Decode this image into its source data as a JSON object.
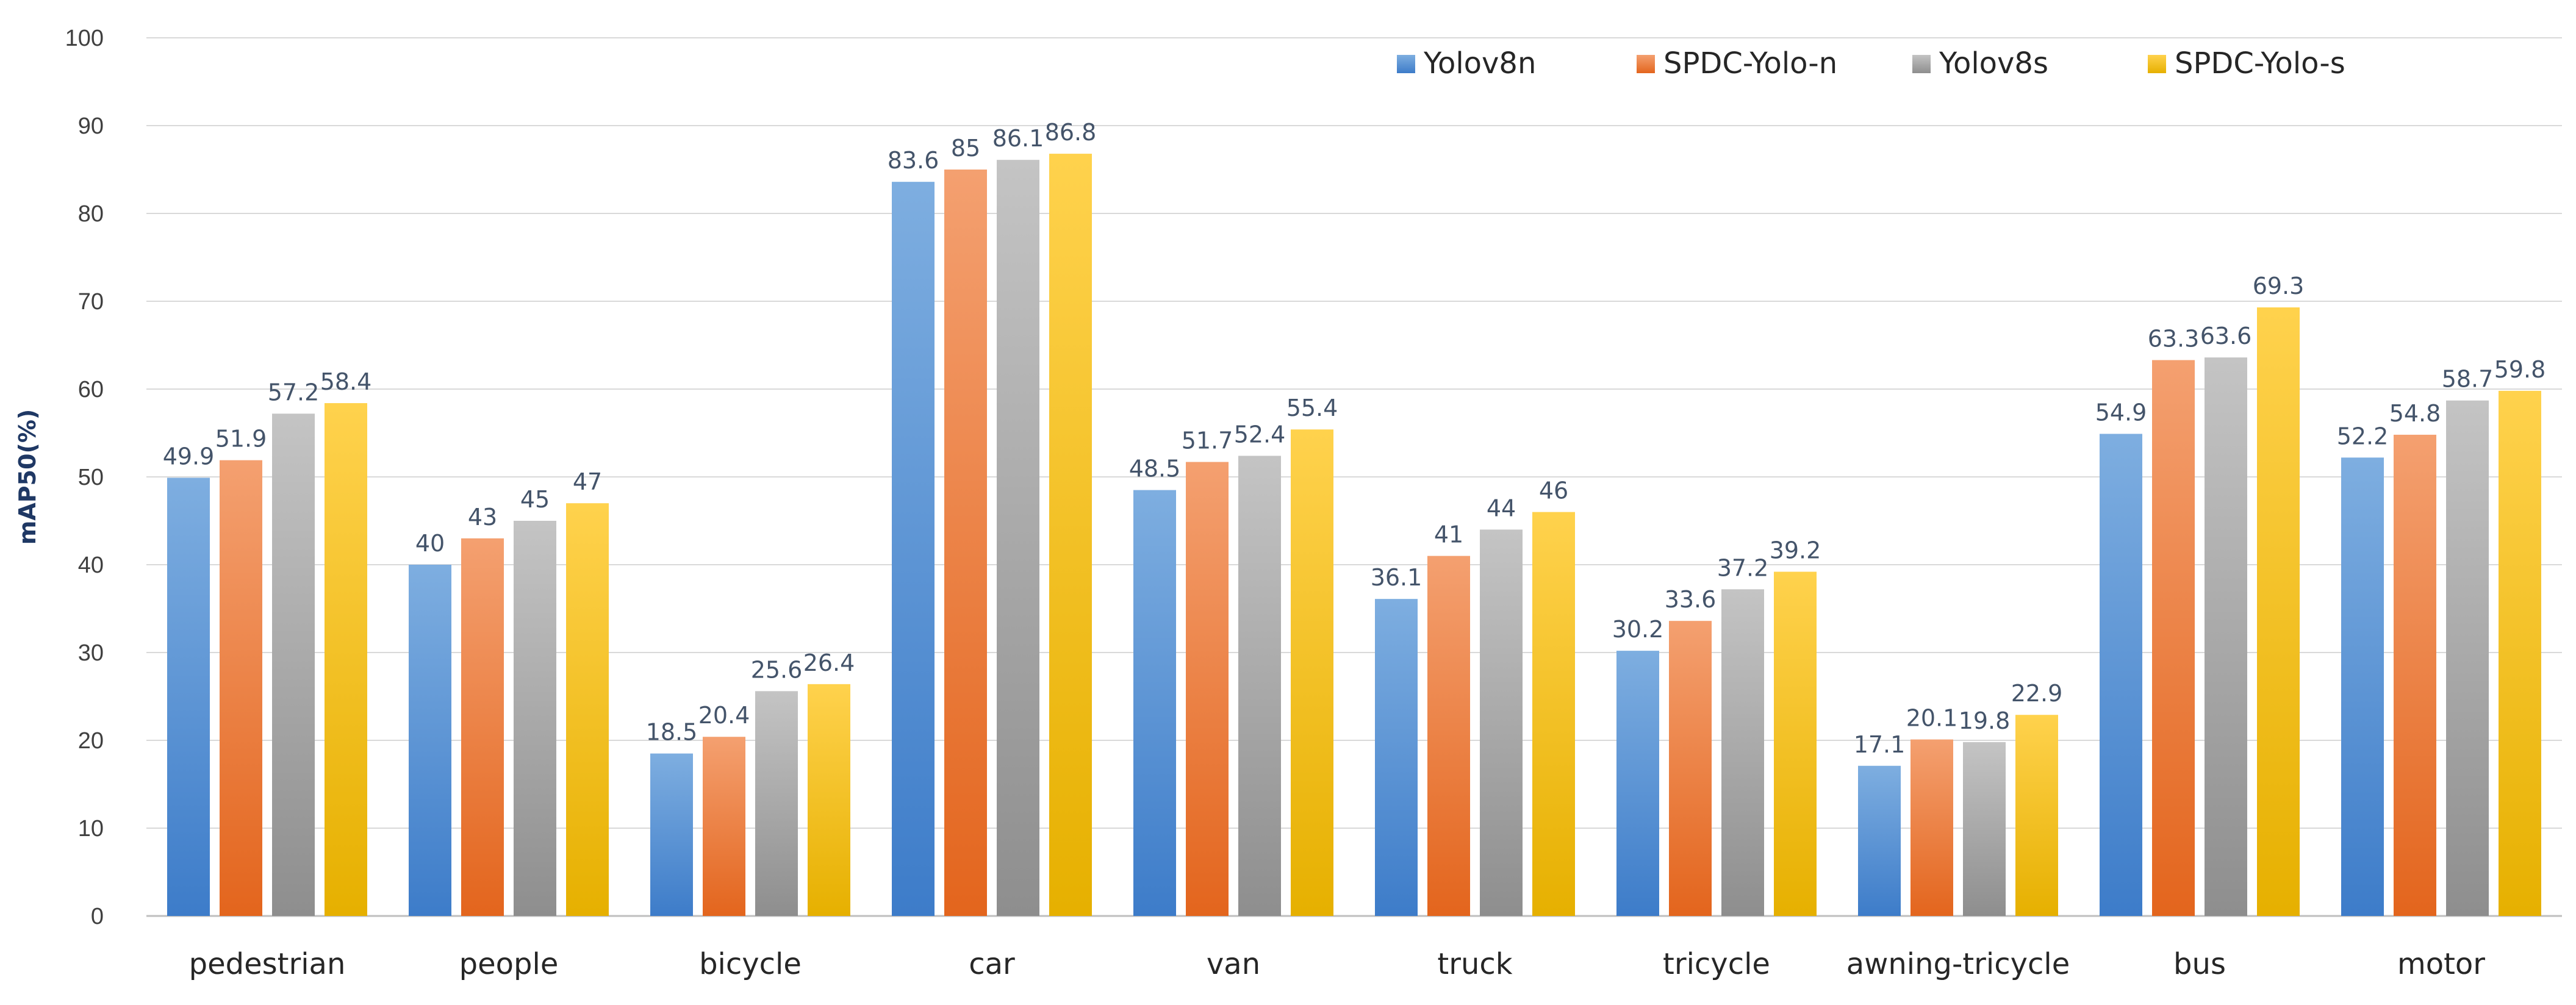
{
  "chart_data": {
    "type": "bar",
    "title": "",
    "xlabel": "",
    "ylabel": "mAP50(%)",
    "ylim": [
      0,
      100
    ],
    "yticks": [
      0,
      10,
      20,
      30,
      40,
      50,
      60,
      70,
      80,
      90,
      100
    ],
    "grid": true,
    "legend_position": "top-right",
    "categories": [
      "pedestrian",
      "people",
      "bicycle",
      "car",
      "van",
      "truck",
      "tricycle",
      "awning-tricycle",
      "bus",
      "motor"
    ],
    "series": [
      {
        "name": "Yolov8n",
        "color_top": "#7eaee0",
        "color_bottom": "#3d7cc9",
        "labels": [
          "49.9",
          "40",
          "18.5",
          "83.6",
          "48.5",
          "36.1",
          "30.2",
          "17.1",
          "54.9",
          "52.2"
        ],
        "values": [
          49.9,
          40,
          18.5,
          83.6,
          48.5,
          36.1,
          30.2,
          17.1,
          54.9,
          52.2
        ]
      },
      {
        "name": "SPDC-Yolo-n",
        "color_top": "#f4a070",
        "color_bottom": "#e3651d",
        "labels": [
          "51.9",
          "43",
          "20.4",
          "85",
          "51.7",
          "41",
          "33.6",
          "20.1",
          "63.3",
          "54.8"
        ],
        "values": [
          51.9,
          43,
          20.4,
          85,
          51.7,
          41,
          33.6,
          20.1,
          63.3,
          54.8
        ]
      },
      {
        "name": "Yolov8s",
        "color_top": "#c4c4c4",
        "color_bottom": "#8e8e8e",
        "labels": [
          "57.2",
          "45",
          "25.6",
          "86.1",
          "52.4",
          "44",
          "37.2",
          "19.8",
          "63.6",
          "58.7"
        ],
        "values": [
          57.2,
          45,
          25.6,
          86.1,
          52.4,
          44,
          37.2,
          19.8,
          63.6,
          58.7
        ]
      },
      {
        "name": "SPDC-Yolo-s",
        "color_top": "#ffd24d",
        "color_bottom": "#e6b000",
        "labels": [
          "58.4",
          "47",
          "26.4",
          "86.8",
          "55.4",
          "46",
          "39.2",
          "22.9",
          "69.3",
          "59.8"
        ],
        "values": [
          58.4,
          47,
          26.4,
          86.8,
          55.4,
          46,
          39.2,
          22.9,
          69.3,
          59.8
        ]
      }
    ]
  }
}
